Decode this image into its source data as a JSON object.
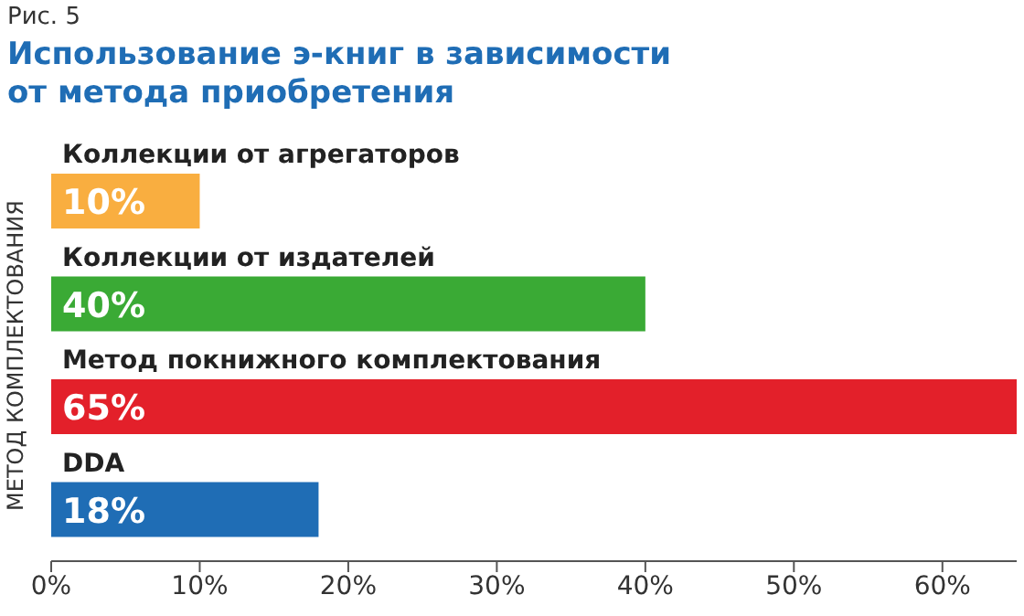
{
  "chart_data": {
    "type": "bar",
    "orientation": "horizontal",
    "subtitle": "Рис. 5",
    "title": "Использование э-книг в зависимости\nот метода приобретения",
    "ylabel": "МЕТОД КОМПЛЕКТОВАНИЯ",
    "categories": [
      "Коллекции от агрегаторов",
      "Коллекции от издателей",
      "Метод покнижного комплектования",
      "DDA"
    ],
    "values": [
      10,
      40,
      65,
      18
    ],
    "colors": [
      "#f9ae40",
      "#3aaa35",
      "#e3202a",
      "#1f6db5"
    ],
    "value_labels": [
      "10%",
      "40%",
      "65%",
      "18%"
    ],
    "xlim": [
      0,
      65
    ],
    "xticks": [
      {
        "value": 0,
        "label": "0%"
      },
      {
        "value": 10,
        "label": "10%"
      },
      {
        "value": 20,
        "label": "20%"
      },
      {
        "value": 30,
        "label": "30%"
      },
      {
        "value": 40,
        "label": "40%"
      },
      {
        "value": 50,
        "label": "50%"
      },
      {
        "value": 60,
        "label": "60%"
      }
    ],
    "grid": false,
    "legend": false
  }
}
